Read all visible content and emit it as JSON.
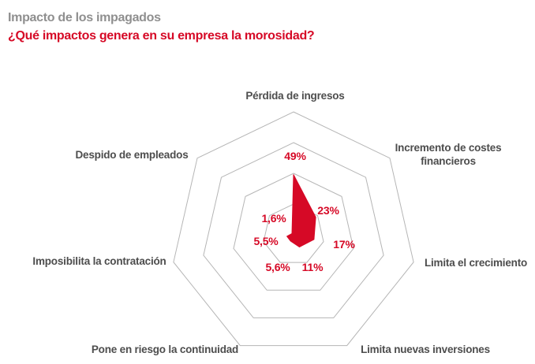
{
  "header": {
    "title": "Impacto de los impagados",
    "subtitle": "¿Qué impactos genera en su empresa la morosidad?"
  },
  "chart_data": {
    "type": "radar",
    "title": "Impacto de los impagados",
    "subtitle": "¿Qué impactos genera en su empresa la morosidad?",
    "categories": [
      "Pérdida de ingresos",
      "Incremento de costes financieros",
      "Limita el crecimiento",
      "Limita nuevas inversiones",
      "Pone en riesgo la continuidad",
      "Imposibilita la contratación",
      "Despido de empleados"
    ],
    "values": [
      49,
      23,
      17,
      11,
      5.6,
      5.5,
      1.6
    ],
    "value_labels": [
      "49%",
      "23%",
      "17%",
      "11%",
      "5,6%",
      "5,5%",
      "1,6%"
    ],
    "axis_order": "clockwise-from-top",
    "scale": {
      "min": 0,
      "max": 100,
      "rings": 4
    },
    "grid": true,
    "legend_position": "none",
    "colors": {
      "series_fill": "#d60926",
      "grid_line": "#b5b5b5",
      "category_text": "#4d4d4d",
      "value_text": "#d60926",
      "kicker_text": "#8f8f8f",
      "headline_text": "#d60926",
      "background": "#ffffff"
    }
  }
}
